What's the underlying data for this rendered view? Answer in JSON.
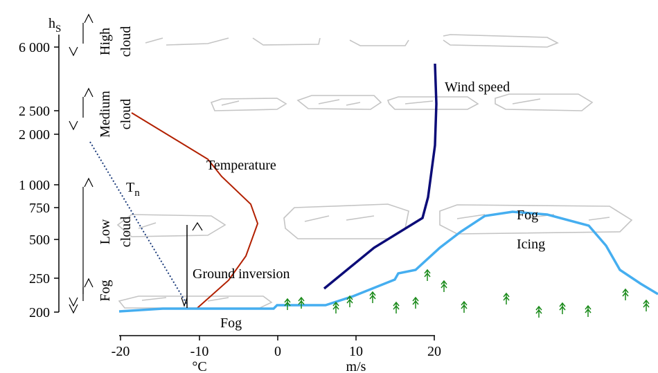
{
  "y_axis": {
    "label": {
      "main": "h",
      "sub": "S"
    },
    "ticks": [
      "6 000",
      "2 500",
      "2 000",
      "1 000",
      "750",
      "500",
      "250",
      "200"
    ]
  },
  "x_axis": {
    "ticks": [
      "-20",
      "-10",
      "0",
      "10",
      "20"
    ],
    "units": [
      "°C",
      "m/s"
    ]
  },
  "layers": [
    {
      "lines": [
        "High",
        "cloud"
      ]
    },
    {
      "lines": [
        "Medium",
        "cloud"
      ]
    },
    {
      "lines": [
        "Low",
        "cloud"
      ]
    },
    {
      "lines": [
        "Fog"
      ]
    }
  ],
  "curve_labels": {
    "wind": "Wind speed",
    "temperature": "Temperature",
    "tn": {
      "main": "T",
      "sub": "n"
    },
    "inversion": "Ground inversion",
    "fog_upper": "Fog",
    "icing": "Icing",
    "fog_lower": "Fog"
  }
}
